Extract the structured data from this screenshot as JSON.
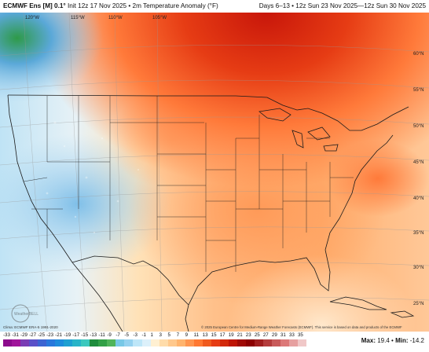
{
  "header": {
    "model": "ECMWF Ens [M] 0.1°",
    "init": "Init 12z 17 Nov 2025",
    "separator": "•",
    "parameter": "2m Temperature Anomaly (°F)",
    "valid_range": "Days 6–13 • 12z Sun 23 Nov 2025—12z Sun 30 Nov 2025"
  },
  "map": {
    "lon_labels": [
      "120°W",
      "115°W",
      "110°W",
      "105°W"
    ],
    "lat_labels": [
      "60°N",
      "55°N",
      "50°N",
      "45°N",
      "40°N",
      "35°N",
      "30°N",
      "25°N"
    ],
    "watermark": "WeatherBELL",
    "credit_left": "Clima: ECMWF ERA-5 1991-2020",
    "credit_right": "© 2025 European Centre for Medium-Range Weather Forecasts (ECMWF). This service is based on data and products of the ECMWF"
  },
  "legend": {
    "ticks": [
      "-33",
      "-31",
      "-29",
      "-27",
      "-25",
      "-23",
      "-21",
      "-19",
      "-17",
      "-15",
      "-13",
      "-11",
      "-9",
      "-7",
      "-5",
      "-3",
      "-1",
      "1",
      "3",
      "5",
      "7",
      "9",
      "11",
      "13",
      "15",
      "17",
      "19",
      "21",
      "23",
      "25",
      "27",
      "29",
      "31",
      "33",
      "35"
    ],
    "colors": [
      "#8c0a8c",
      "#a0149a",
      "#7a3cb4",
      "#5a50c8",
      "#3c64d2",
      "#2878dc",
      "#1e8cdc",
      "#1ea0d2",
      "#28b4c8",
      "#3cc8be",
      "#1e8c3c",
      "#32a046",
      "#50b45a",
      "#78c8e6",
      "#96d2f0",
      "#bee6f8",
      "#dcf0fa",
      "#fff0d2",
      "#ffdcaa",
      "#ffc88c",
      "#ffb46e",
      "#ff9650",
      "#ff7832",
      "#f05a1e",
      "#e63c14",
      "#d2280a",
      "#be1405",
      "#a00a05",
      "#8c0000",
      "#a01e1e",
      "#b43c3c",
      "#c85a5a",
      "#dc7878",
      "#e6a0a0",
      "#f0c8c8"
    ],
    "max_label": "Max:",
    "max_value": "19.4",
    "sep": "•",
    "min_label": "Min:",
    "min_value": "-14.2"
  }
}
